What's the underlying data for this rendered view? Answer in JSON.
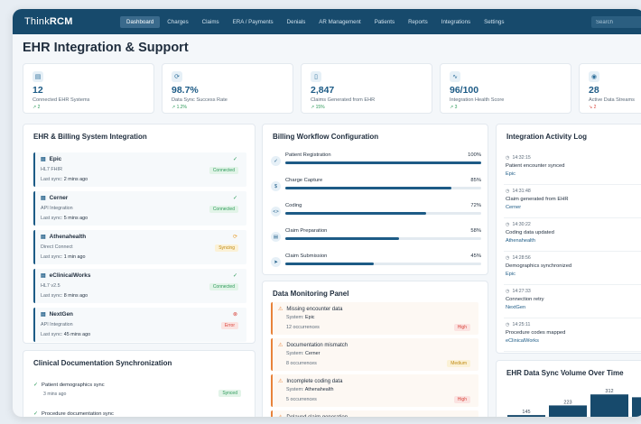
{
  "nav": {
    "logo_prefix": "Think",
    "logo_suffix": "RCM",
    "items": [
      "Dashboard",
      "Charges",
      "Claims",
      "ERA / Payments",
      "Denials",
      "AR Management",
      "Patients",
      "Reports",
      "Integrations",
      "Settings"
    ],
    "active_index": 0,
    "search_placeholder": "Search"
  },
  "page_title": "EHR Integration & Support",
  "stats": [
    {
      "icon": "database-icon",
      "glyph": "▤",
      "value": "12",
      "label": "Connected EHR Systems",
      "trend": "↗ 2",
      "dir": "up"
    },
    {
      "icon": "sync-icon",
      "glyph": "⟳",
      "value": "98.7%",
      "label": "Data Sync Success Rate",
      "trend": "↗ 1.2%",
      "dir": "up"
    },
    {
      "icon": "document-icon",
      "glyph": "▯",
      "value": "2,847",
      "label": "Claims Generated from EHR",
      "trend": "↗ 15%",
      "dir": "up"
    },
    {
      "icon": "pulse-icon",
      "glyph": "∿",
      "value": "96/100",
      "label": "Integration Health Score",
      "trend": "↗ 3",
      "dir": "up"
    },
    {
      "icon": "signal-icon",
      "glyph": "◉",
      "value": "28",
      "label": "Active Data Streams",
      "trend": "↘ 2",
      "dir": "down"
    }
  ],
  "ehr_panel": {
    "title": "EHR & Billing System Integration",
    "systems": [
      {
        "name": "Epic",
        "type": "HL7 FHIR",
        "sync_label": "Last sync:",
        "sync": "2 mins ago",
        "status": "Connected",
        "status_class": "b-green",
        "status_glyph": "✓",
        "status_color": "#2d9a5a"
      },
      {
        "name": "Cerner",
        "type": "API Integration",
        "sync_label": "Last sync:",
        "sync": "5 mins ago",
        "status": "Connected",
        "status_class": "b-green",
        "status_glyph": "✓",
        "status_color": "#2d9a5a"
      },
      {
        "name": "Athenahealth",
        "type": "Direct Connect",
        "sync_label": "Last sync:",
        "sync": "1 min ago",
        "status": "Syncing",
        "status_class": "b-yellow",
        "status_glyph": "⟳",
        "status_color": "#e8a33a"
      },
      {
        "name": "eClinicalWorks",
        "type": "HL7 v2.5",
        "sync_label": "Last sync:",
        "sync": "8 mins ago",
        "status": "Connected",
        "status_class": "b-green",
        "status_glyph": "✓",
        "status_color": "#2d9a5a"
      },
      {
        "name": "NextGen",
        "type": "API Integration",
        "sync_label": "Last sync:",
        "sync": "45 mins ago",
        "status": "Error",
        "status_class": "b-red",
        "status_glyph": "⊗",
        "status_color": "#d9453c"
      }
    ]
  },
  "doc_panel": {
    "title": "Clinical Documentation Synchronization",
    "items": [
      {
        "title": "Patient demographics sync",
        "time": "3 mins ago",
        "status": "Synced"
      },
      {
        "title": "Procedure documentation sync",
        "time": "",
        "status": ""
      }
    ]
  },
  "workflow": {
    "title": "Billing Workflow Configuration",
    "steps": [
      {
        "label": "Patient Registration",
        "pct": 100,
        "pct_label": "100%",
        "glyph": "✓"
      },
      {
        "label": "Charge Capture",
        "pct": 85,
        "pct_label": "85%",
        "glyph": "$"
      },
      {
        "label": "Coding",
        "pct": 72,
        "pct_label": "72%",
        "glyph": "<>"
      },
      {
        "label": "Claim Preparation",
        "pct": 58,
        "pct_label": "58%",
        "glyph": "▤"
      },
      {
        "label": "Claim Submission",
        "pct": 45,
        "pct_label": "45%",
        "glyph": "➤"
      }
    ]
  },
  "monitor": {
    "title": "Data Monitoring Panel",
    "items": [
      {
        "title": "Missing encounter data",
        "system_label": "System:",
        "system": "Epic",
        "occ": "12 occurrences",
        "sev": "High",
        "sev_class": "b-red"
      },
      {
        "title": "Documentation mismatch",
        "system_label": "System:",
        "system": "Cerner",
        "occ": "8 occurrences",
        "sev": "Medium",
        "sev_class": "b-yellow"
      },
      {
        "title": "Incomplete coding data",
        "system_label": "System:",
        "system": "Athenahealth",
        "occ": "5 occurrences",
        "sev": "High",
        "sev_class": "b-red"
      },
      {
        "title": "Delayed claim generation",
        "system_label": "",
        "system": "",
        "occ": "",
        "sev": "",
        "sev_class": ""
      }
    ]
  },
  "log": {
    "title": "Integration Activity Log",
    "items": [
      {
        "time": "14:32:15",
        "msg": "Patient encounter synced",
        "src": "Epic"
      },
      {
        "time": "14:31:48",
        "msg": "Claim generated from EHR",
        "src": "Cerner"
      },
      {
        "time": "14:30:22",
        "msg": "Coding data updated",
        "src": "Athenahealth"
      },
      {
        "time": "14:28:56",
        "msg": "Demographics synchronized",
        "src": "Epic"
      },
      {
        "time": "14:27:33",
        "msg": "Connection retry",
        "src": "NextGen"
      },
      {
        "time": "14:25:11",
        "msg": "Procedure codes mapped",
        "src": "eClinicalWorks"
      }
    ]
  },
  "chart_data": {
    "type": "bar",
    "title": "EHR Data Sync Volume Over Time",
    "values": [
      145,
      223,
      312,
      289
    ],
    "ylim": [
      0,
      350
    ],
    "color": "#174a6c"
  }
}
